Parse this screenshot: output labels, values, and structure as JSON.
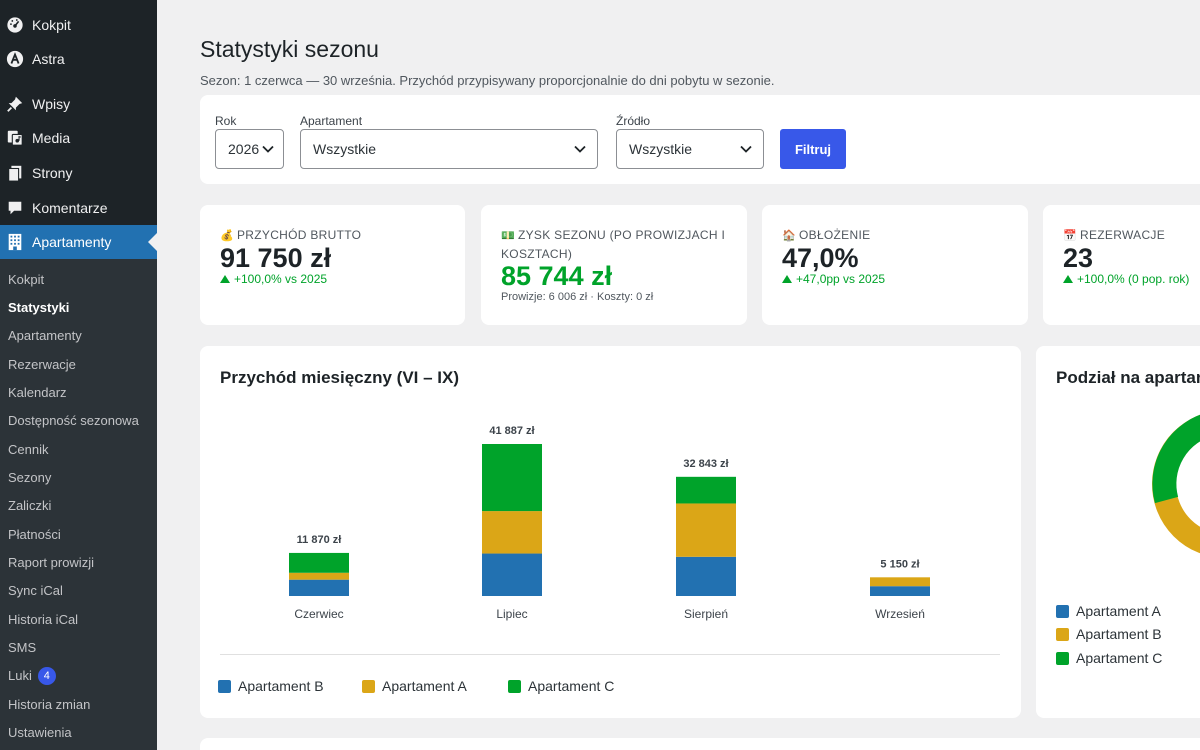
{
  "menu": {
    "items": [
      {
        "label": "Kokpit",
        "icon": "dashboard-icon"
      },
      {
        "label": "Astra",
        "icon": "astra-icon"
      },
      {
        "label": "Wpisy",
        "icon": "pin-icon"
      },
      {
        "label": "Media",
        "icon": "media-icon"
      },
      {
        "label": "Strony",
        "icon": "pages-icon"
      },
      {
        "label": "Komentarze",
        "icon": "comments-icon"
      },
      {
        "label": "Apartamenty",
        "icon": "building-icon"
      }
    ],
    "submenu": [
      "Kokpit",
      "Statystyki",
      "Apartamenty",
      "Rezerwacje",
      "Kalendarz",
      "Dostępność sezonowa",
      "Cennik",
      "Sezony",
      "Zaliczki",
      "Płatności",
      "Raport prowizji",
      "Sync iCal",
      "Historia iCal",
      "SMS",
      "Luki",
      "Historia zmian",
      "Ustawienia"
    ],
    "luki_badge": "4"
  },
  "page": {
    "title": "Statystyki sezonu",
    "subtitle": "Sezon: 1 czerwca — 30 września. Przychód przypisywany proporcjonalnie do dni pobytu w sezonie."
  },
  "filters": {
    "year_label": "Rok",
    "year_value": "2026",
    "apartment_label": "Apartament",
    "apartment_value": "Wszystkie",
    "source_label": "Źródło",
    "source_value": "Wszystkie",
    "button": "Filtruj"
  },
  "kpis": {
    "revenue": {
      "emoji": "💰",
      "label": "Przychód brutto",
      "value": "91 750 zł",
      "delta": "+100,0% vs 2025"
    },
    "profit": {
      "emoji": "💵",
      "label": "Zysk sezonu (po prowizjach i kosztach)",
      "value": "85 744 zł",
      "extra": "Prowizje: 6 006 zł · Koszty: 0 zł"
    },
    "occupancy": {
      "emoji": "🏠",
      "label": "Obłożenie",
      "value": "47,0%",
      "delta": "+47,0pp vs 2025"
    },
    "bookings": {
      "emoji": "📅",
      "label": "Rezerwacje",
      "value": "23",
      "delta": "+100,0% (0 pop. rok)"
    }
  },
  "chart": {
    "title": "Przychód miesięczny (VI – IX)"
  },
  "chart_data": {
    "type": "bar",
    "stacked": true,
    "categories": [
      "Czerwiec",
      "Lipiec",
      "Sierpień",
      "Wrzesień"
    ],
    "totals_labels": [
      "11 870 zł",
      "41 887 zł",
      "32 843 zł",
      "5 150 zł"
    ],
    "series": [
      {
        "name": "Apartament B",
        "color": "#2271b1",
        "values": [
          4500,
          11700,
          10800,
          2700
        ]
      },
      {
        "name": "Apartament A",
        "color": "#dba617",
        "values": [
          1900,
          11700,
          14700,
          2450
        ]
      },
      {
        "name": "Apartament C",
        "color": "#00a32a",
        "values": [
          5470,
          18487,
          7343,
          0
        ]
      }
    ]
  },
  "share": {
    "title": "Podział na apartamenty",
    "legend": [
      {
        "name": "Apartament A",
        "color": "#2271b1"
      },
      {
        "name": "Apartament B",
        "color": "#dba617"
      },
      {
        "name": "Apartament C",
        "color": "#00a32a"
      }
    ]
  }
}
